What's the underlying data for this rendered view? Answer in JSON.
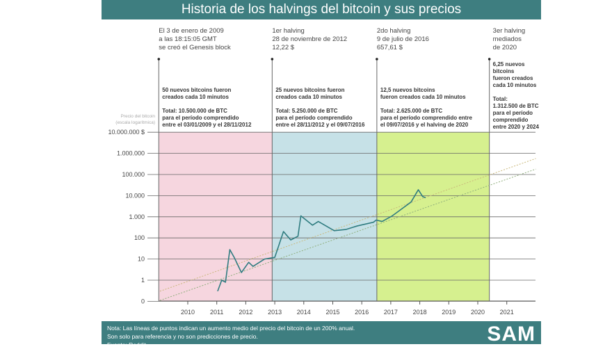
{
  "header": {
    "title": "Historia de los halvings del bitcoin y sus precios"
  },
  "footer": {
    "note_lines": [
      "Nota: Las líneas de puntos indican un aumento medio del precio del bitcoin de un 200% anual.",
      "Son solo para referencia y no son predicciones de precio.",
      "Fuente: Reddit"
    ],
    "logo": "SAM"
  },
  "colors": {
    "header": "#3e7e80",
    "line": "#2f7c80",
    "zone1": "#f6d6df",
    "zone2": "#c6e1e7",
    "zone3": "#d6f08f",
    "trend_upper": "#c9b77a",
    "trend_lower": "#8fae7c"
  },
  "chart_data": {
    "type": "line",
    "title": "Historia de los halvings del bitcoin y sus precios",
    "ylabel_lines": [
      "Precio del bitcoin",
      "(escala logarítmica)"
    ],
    "y_scale": "log",
    "y_ticks": [
      {
        "value": 0.1,
        "label": "0"
      },
      {
        "value": 1,
        "label": "1"
      },
      {
        "value": 10,
        "label": "10"
      },
      {
        "value": 100,
        "label": "100"
      },
      {
        "value": 1000,
        "label": "1.000"
      },
      {
        "value": 10000,
        "label": "10.000"
      },
      {
        "value": 100000,
        "label": "100.000"
      },
      {
        "value": 1000000,
        "label": "1.000.000"
      },
      {
        "value": 10000000,
        "label": "10.000.000 $"
      }
    ],
    "x_ticks": [
      "2010",
      "2011",
      "2012",
      "2013",
      "2014",
      "2015",
      "2016",
      "2017",
      "2018",
      "2019",
      "2020",
      "2021"
    ],
    "xlim": [
      2008.1,
      2022.2
    ],
    "grid": true,
    "series": [
      {
        "x": [
          2011.03,
          2011.17,
          2011.3,
          2011.45,
          2011.6,
          2011.85,
          2012.1,
          2012.25,
          2012.65,
          2013.0,
          2013.3,
          2013.55,
          2013.8,
          2013.9,
          2014.3,
          2014.5,
          2015.05,
          2015.45,
          2015.85,
          2016.4,
          2016.5,
          2016.7,
          2017.05,
          2017.45,
          2017.7,
          2017.95,
          2018.1,
          2018.2
        ],
        "y": [
          0.3,
          1,
          0.8,
          28,
          12,
          2.3,
          7,
          4.5,
          10,
          12,
          200,
          80,
          120,
          1100,
          400,
          600,
          220,
          250,
          370,
          550,
          700,
          600,
          1100,
          2800,
          5000,
          19000,
          9000,
          8000
        ]
      }
    ],
    "trend_lines": [
      {
        "x": [
          2009.04,
          2022.0
        ],
        "y": [
          0.3,
          570000
        ]
      },
      {
        "x": [
          2009.04,
          2022.0
        ],
        "y": [
          0.11,
          180000
        ]
      }
    ],
    "eras": [
      {
        "start": 2009.0,
        "end": 2012.91,
        "color_key": "zone1",
        "head": [
          "El 3 de enero de 2009",
          "a las 18:15:05 GMT",
          "se creó el Genesis block"
        ],
        "body": [
          "50 nuevos bitcoins fueron",
          "creados cada 10 minutos",
          "",
          "Total: 10.500.000 de BTC",
          "para el período comprendido",
          "entre el 03/01/2009 y el 28/11/2012"
        ]
      },
      {
        "start": 2012.91,
        "end": 2016.52,
        "color_key": "zone2",
        "head": [
          "1er halving",
          "28 de noviembre de 2012",
          "12,22 $"
        ],
        "body": [
          "25 nuevos bitcoins fueron",
          "creados cada 10 minutos",
          "",
          "Total: 5.250.000 de BTC",
          "para el período comprendido",
          "entre el 28/11/2012 y el 09/07/2016"
        ]
      },
      {
        "start": 2016.52,
        "end": 2020.4,
        "color_key": "zone3",
        "head": [
          "2do halving",
          "9 de julio de 2016",
          "657,61 $"
        ],
        "body": [
          "12,5 nuevos bitcoins",
          "fueron creados cada 10 minutos",
          "",
          "Total: 2.625.000 de BTC",
          "para el período comprendido entre",
          "el 09/07/2016 y el halving de 2020"
        ]
      },
      {
        "start": 2020.4,
        "end": null,
        "color_key": null,
        "head": [
          "3er halving",
          "mediados",
          "de 2020"
        ],
        "body": [
          "6,25 nuevos",
          "bitcoins",
          "fueron creados",
          "cada 10 minutos",
          "",
          "Total:",
          "1.312.500 de BTC",
          "para el período",
          "comprendido",
          "entre 2020 y 2024"
        ]
      }
    ]
  }
}
